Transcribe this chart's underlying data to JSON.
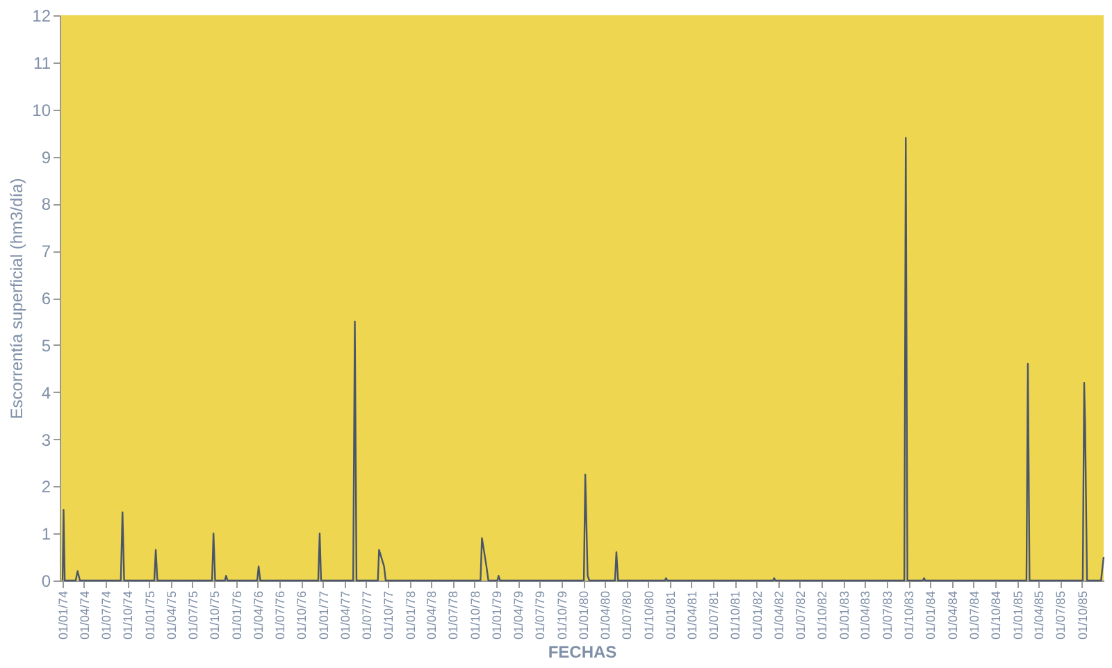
{
  "chart_data": {
    "type": "line",
    "xlabel": "FECHAS",
    "ylabel": "Escorrentía superficial (hm3/día)",
    "x": [
      "1974-01-01",
      "1974-01-05",
      "1974-01-10",
      "1974-02-25",
      "1974-03-05",
      "1974-03-15",
      "1974-09-03",
      "1974-09-10",
      "1974-09-17",
      "1975-01-22",
      "1975-01-28",
      "1975-02-04",
      "1975-09-22",
      "1975-09-28",
      "1975-10-05",
      "1975-11-15",
      "1975-11-20",
      "1975-11-26",
      "1976-03-30",
      "1976-04-05",
      "1976-04-12",
      "1976-12-12",
      "1976-12-18",
      "1976-12-24",
      "1977-05-08",
      "1977-05-15",
      "1977-05-22",
      "1977-08-20",
      "1977-08-25",
      "1977-09-15",
      "1977-09-22",
      "1978-10-26",
      "1978-11-01",
      "1978-11-20",
      "1978-11-28",
      "1979-01-05",
      "1979-01-10",
      "1979-01-16",
      "1980-01-04",
      "1980-01-10",
      "1980-01-20",
      "1980-01-27",
      "1980-05-14",
      "1980-05-20",
      "1980-05-27",
      "1980-12-10",
      "1980-12-15",
      "1980-12-20",
      "1982-03-10",
      "1982-03-15",
      "1982-03-20",
      "1983-09-14",
      "1983-09-20",
      "1983-09-27",
      "1983-12-01",
      "1983-12-06",
      "1983-12-11",
      "1985-02-09",
      "1985-02-15",
      "1985-02-22",
      "1985-10-04",
      "1985-10-10",
      "1985-10-14",
      "1985-10-22",
      "1985-12-20",
      "1985-12-31"
    ],
    "values": [
      0,
      1.5,
      0,
      0,
      0.2,
      0,
      0,
      1.45,
      0,
      0,
      0.65,
      0,
      0,
      1.0,
      0,
      0,
      0.1,
      0,
      0,
      0.3,
      0,
      0,
      1.0,
      0,
      0,
      5.5,
      0,
      0,
      0.65,
      0.3,
      0,
      0,
      0.9,
      0.3,
      0,
      0,
      0.1,
      0,
      0,
      2.25,
      0.1,
      0,
      0,
      0.6,
      0,
      0,
      0.05,
      0,
      0,
      0.05,
      0,
      0,
      9.4,
      0,
      0,
      0.05,
      0,
      0,
      4.6,
      0,
      0,
      4.2,
      3.3,
      0,
      0,
      0.5
    ],
    "color": "#4a5568",
    "xlim": [
      "1973-12-20",
      "1985-12-31"
    ],
    "xticks": [
      {
        "value": "1974-01-01",
        "label": "01/01/74"
      },
      {
        "value": "1974-04-01",
        "label": "01/04/74"
      },
      {
        "value": "1974-07-01",
        "label": "01/07/74"
      },
      {
        "value": "1974-10-01",
        "label": "01/10/74"
      },
      {
        "value": "1975-01-01",
        "label": "01/01/75"
      },
      {
        "value": "1975-04-01",
        "label": "01/04/75"
      },
      {
        "value": "1975-07-01",
        "label": "01/07/75"
      },
      {
        "value": "1975-10-01",
        "label": "01/10/75"
      },
      {
        "value": "1976-01-01",
        "label": "01/01/76"
      },
      {
        "value": "1976-04-01",
        "label": "01/04/76"
      },
      {
        "value": "1976-07-01",
        "label": "01/07/76"
      },
      {
        "value": "1976-10-01",
        "label": "01/10/76"
      },
      {
        "value": "1977-01-01",
        "label": "01/01/77"
      },
      {
        "value": "1977-04-01",
        "label": "01/04/77"
      },
      {
        "value": "1977-07-01",
        "label": "01/07/77"
      },
      {
        "value": "1977-10-01",
        "label": "01/10/77"
      },
      {
        "value": "1978-01-01",
        "label": "01/01/78"
      },
      {
        "value": "1978-04-01",
        "label": "01/04/78"
      },
      {
        "value": "1978-07-01",
        "label": "01/07/78"
      },
      {
        "value": "1978-10-01",
        "label": "01/10/78"
      },
      {
        "value": "1979-01-01",
        "label": "01/01/79"
      },
      {
        "value": "1979-04-01",
        "label": "01/04/79"
      },
      {
        "value": "1979-07-01",
        "label": "01/07/79"
      },
      {
        "value": "1979-10-01",
        "label": "01/10/79"
      },
      {
        "value": "1980-01-01",
        "label": "01/01/80"
      },
      {
        "value": "1980-04-01",
        "label": "01/04/80"
      },
      {
        "value": "1980-07-01",
        "label": "01/07/80"
      },
      {
        "value": "1980-10-01",
        "label": "01/10/80"
      },
      {
        "value": "1981-01-01",
        "label": "01/01/81"
      },
      {
        "value": "1981-04-01",
        "label": "01/04/81"
      },
      {
        "value": "1981-07-01",
        "label": "01/07/81"
      },
      {
        "value": "1981-10-01",
        "label": "01/10/81"
      },
      {
        "value": "1982-01-01",
        "label": "01/01/82"
      },
      {
        "value": "1982-04-01",
        "label": "01/04/82"
      },
      {
        "value": "1982-07-01",
        "label": "01/07/82"
      },
      {
        "value": "1982-10-01",
        "label": "01/10/82"
      },
      {
        "value": "1983-01-01",
        "label": "01/01/83"
      },
      {
        "value": "1983-04-01",
        "label": "01/04/83"
      },
      {
        "value": "1983-07-01",
        "label": "01/07/83"
      },
      {
        "value": "1983-10-01",
        "label": "01/10/83"
      },
      {
        "value": "1984-01-01",
        "label": "01/01/84"
      },
      {
        "value": "1984-04-01",
        "label": "01/04/84"
      },
      {
        "value": "1984-07-01",
        "label": "01/07/84"
      },
      {
        "value": "1984-10-01",
        "label": "01/10/84"
      },
      {
        "value": "1985-01-01",
        "label": "01/01/85"
      },
      {
        "value": "1985-04-01",
        "label": "01/04/85"
      },
      {
        "value": "1985-07-01",
        "label": "01/07/85"
      },
      {
        "value": "1985-10-01",
        "label": "01/10/85"
      }
    ],
    "ylim": [
      0,
      12
    ],
    "yticks": [
      0,
      1,
      2,
      3,
      4,
      5,
      6,
      7,
      8,
      9,
      10,
      11,
      12
    ],
    "grid": false,
    "marker": "none",
    "line_style": "solid"
  }
}
